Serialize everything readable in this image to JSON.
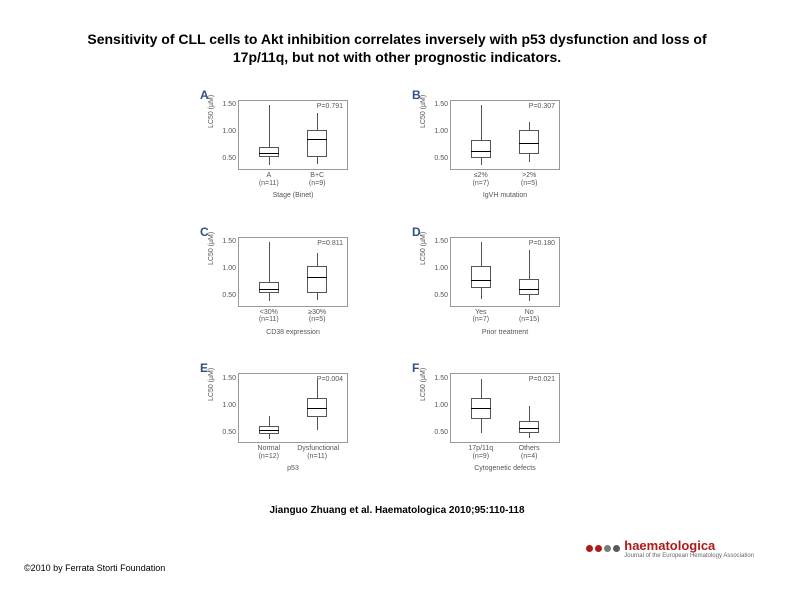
{
  "title_line1": "Sensitivity of CLL cells to Akt inhibition correlates inversely with p53 dysfunction and loss of",
  "title_line2": "17p/11q, but not with other prognostic indicators.",
  "citation": "Jianguo Zhuang et al. Haematologica 2010;95:110-118",
  "copyright": "©2010 by Ferrata Storti Foundation",
  "logo": {
    "text": "haematologica",
    "subtitle": "Journal of the European Hematology Association",
    "dot_colors": [
      "#b11919",
      "#b11919",
      "#7a7a7a",
      "#5a5a5a"
    ]
  },
  "ylabel": "LC50 (µM)",
  "yticks": [
    "1.50",
    "1.00",
    "0.50"
  ],
  "ylim": [
    0.3,
    1.6
  ],
  "colors": {
    "axis": "#999999",
    "box": "#555555",
    "text": "#555555",
    "panel_label": "#314f8a"
  },
  "panels": [
    {
      "label": "A",
      "pvalue": "P=0.791",
      "xlabel": "Stage (Binet)",
      "groups": [
        {
          "name": "A",
          "n": "(n=11)",
          "q1": 0.55,
          "median": 0.62,
          "q3": 0.72,
          "wlow": 0.4,
          "whigh": 1.5
        },
        {
          "name": "B+C",
          "n": "(n=9)",
          "q1": 0.55,
          "median": 0.88,
          "q3": 1.05,
          "wlow": 0.42,
          "whigh": 1.35
        }
      ]
    },
    {
      "label": "B",
      "pvalue": "P=0.307",
      "xlabel": "IgVH mutation",
      "groups": [
        {
          "name": "≤2%",
          "n": "(n=7)",
          "q1": 0.52,
          "median": 0.65,
          "q3": 0.85,
          "wlow": 0.4,
          "whigh": 1.5
        },
        {
          "name": ">2%",
          "n": "(n=5)",
          "q1": 0.6,
          "median": 0.8,
          "q3": 1.05,
          "wlow": 0.45,
          "whigh": 1.2
        }
      ]
    },
    {
      "label": "C",
      "pvalue": "P=0.811",
      "xlabel": "CD38 expression",
      "groups": [
        {
          "name": "<30%",
          "n": "(n=11)",
          "q1": 0.55,
          "median": 0.62,
          "q3": 0.75,
          "wlow": 0.4,
          "whigh": 1.5
        },
        {
          "name": "≥30%",
          "n": "(n=5)",
          "q1": 0.55,
          "median": 0.85,
          "q3": 1.05,
          "wlow": 0.42,
          "whigh": 1.3
        }
      ]
    },
    {
      "label": "D",
      "pvalue": "P=0.180",
      "xlabel": "Prior treatment",
      "groups": [
        {
          "name": "Yes",
          "n": "(n=7)",
          "q1": 0.65,
          "median": 0.8,
          "q3": 1.05,
          "wlow": 0.45,
          "whigh": 1.5
        },
        {
          "name": "No",
          "n": "(n=15)",
          "q1": 0.52,
          "median": 0.62,
          "q3": 0.82,
          "wlow": 0.4,
          "whigh": 1.35
        }
      ]
    },
    {
      "label": "E",
      "pvalue": "P=0.004",
      "xlabel": "p53",
      "groups": [
        {
          "name": "Normal",
          "n": "(n=12)",
          "q1": 0.48,
          "median": 0.55,
          "q3": 0.62,
          "wlow": 0.38,
          "whigh": 0.8
        },
        {
          "name": "Dysfunctional",
          "n": "(n=11)",
          "q1": 0.78,
          "median": 0.95,
          "q3": 1.15,
          "wlow": 0.55,
          "whigh": 1.5
        }
      ]
    },
    {
      "label": "F",
      "pvalue": "P=0.021",
      "xlabel": "Cytogenetic defects",
      "groups": [
        {
          "name": "17p/11q",
          "n": "(n=9)",
          "q1": 0.75,
          "median": 0.95,
          "q3": 1.15,
          "wlow": 0.5,
          "whigh": 1.5
        },
        {
          "name": "Others",
          "n": "(n=4)",
          "q1": 0.5,
          "median": 0.58,
          "q3": 0.72,
          "wlow": 0.4,
          "whigh": 1.0
        }
      ]
    }
  ]
}
